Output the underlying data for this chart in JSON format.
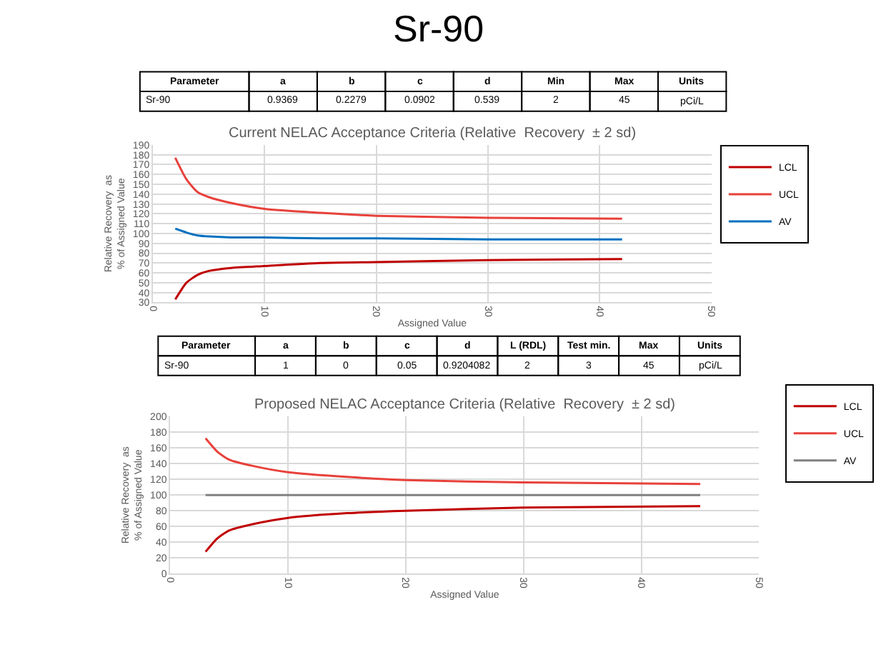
{
  "chart_data": [
    {
      "type": "other",
      "title": "Sr-90",
      "categories": [
        "Parameter",
        "a",
        "b",
        "c",
        "d",
        "Min",
        "Max",
        "Units"
      ],
      "cell_labels": [
        [
          "Sr-90",
          "0.9369",
          "0.2279",
          "0.0902",
          "0.539",
          "2",
          "45",
          "pCi/L"
        ]
      ]
    },
    {
      "type": "line",
      "title": "Current NELAC Acceptance Criteria (Relative  Recovery  ± 2 sd)",
      "xlabel": "Assigned Value",
      "ylabel": "Relative Recovery  as\n% of Assigned Value",
      "xlim": [
        0,
        50
      ],
      "xticks": [
        0,
        10,
        20,
        30,
        40,
        50
      ],
      "ylim": [
        30,
        190
      ],
      "yticks": [
        30,
        40,
        50,
        60,
        70,
        80,
        90,
        100,
        110,
        120,
        130,
        140,
        150,
        160,
        170,
        180,
        190
      ],
      "grid": true,
      "legend": "right",
      "series": [
        {
          "name": "LCL",
          "color": "#c00000",
          "x": [
            2,
            3,
            4,
            5,
            7,
            10,
            15,
            20,
            30,
            42
          ],
          "values": [
            33,
            50,
            58,
            62,
            65,
            67,
            70,
            71,
            73,
            74
          ]
        },
        {
          "name": "UCL",
          "color": "#e8413b",
          "x": [
            2,
            3,
            4,
            5,
            7,
            10,
            15,
            20,
            30,
            42
          ],
          "values": [
            177,
            155,
            142,
            137,
            131,
            125,
            121,
            118,
            116,
            115
          ]
        },
        {
          "name": "AV",
          "color": "#0070c0",
          "x": [
            2,
            3,
            4,
            5,
            7,
            10,
            15,
            20,
            30,
            42
          ],
          "values": [
            105,
            101,
            98,
            97,
            96,
            96,
            95,
            95,
            94,
            94
          ]
        }
      ]
    },
    {
      "type": "other",
      "categories": [
        "Parameter",
        "a",
        "b",
        "c",
        "d",
        "L (RDL)",
        "Test min.",
        "Max",
        "Units"
      ],
      "cell_labels": [
        [
          "Sr-90",
          "1",
          "0",
          "0.05",
          "0.9204082",
          "2",
          "3",
          "45",
          "pCi/L"
        ]
      ]
    },
    {
      "type": "line",
      "title": "Proposed NELAC Acceptance Criteria (Relative  Recovery  ± 2 sd)",
      "xlabel": "Assigned Value",
      "ylabel": "Relative Recovery  as\n% of Assigned Value",
      "xlim": [
        0,
        50
      ],
      "xticks": [
        0,
        10,
        20,
        30,
        40,
        50
      ],
      "ylim": [
        0,
        200
      ],
      "yticks": [
        0,
        20,
        40,
        60,
        80,
        100,
        120,
        140,
        160,
        180,
        200
      ],
      "grid": true,
      "legend": "right",
      "series": [
        {
          "name": "LCL",
          "color": "#c00000",
          "x": [
            3,
            4,
            5,
            7,
            10,
            15,
            20,
            30,
            45
          ],
          "values": [
            28,
            45,
            55,
            63,
            71,
            77,
            80,
            84,
            86
          ]
        },
        {
          "name": "UCL",
          "color": "#e8413b",
          "x": [
            3,
            4,
            5,
            7,
            10,
            15,
            20,
            30,
            45
          ],
          "values": [
            172,
            155,
            145,
            137,
            129,
            123,
            119,
            116,
            114
          ]
        },
        {
          "name": "AV",
          "color": "#808080",
          "x": [
            3,
            45
          ],
          "values": [
            100,
            100
          ]
        }
      ]
    }
  ]
}
